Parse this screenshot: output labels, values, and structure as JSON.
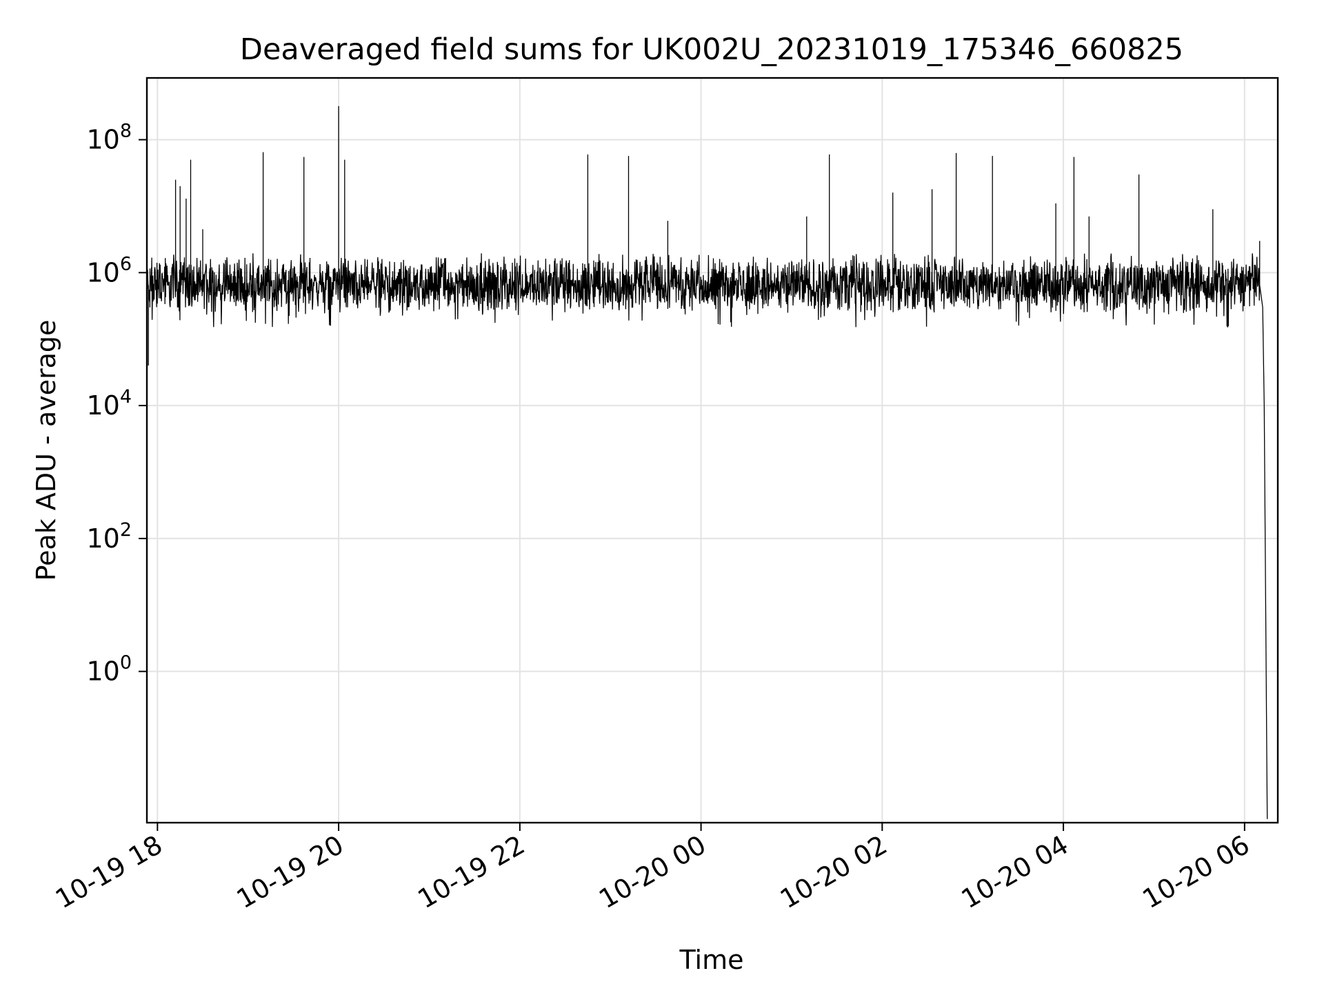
{
  "chart_data": {
    "type": "line",
    "title": "Deaveraged field sums for UK002U_20231019_175346_660825",
    "xlabel": "Time",
    "ylabel": "Peak ADU - average",
    "x_scale": "time",
    "y_scale": "log",
    "xlim": [
      "2023-10-19 17:53",
      "2023-10-20 06:22"
    ],
    "ylim": [
      0.0053,
      850000000
    ],
    "grid": true,
    "line_color": "#000000",
    "x_ticks": [
      {
        "value": "2023-10-19 18:00",
        "label": "10-19 18"
      },
      {
        "value": "2023-10-19 20:00",
        "label": "10-19 20"
      },
      {
        "value": "2023-10-19 22:00",
        "label": "10-19 22"
      },
      {
        "value": "2023-10-20 00:00",
        "label": "10-20 00"
      },
      {
        "value": "2023-10-20 02:00",
        "label": "10-20 02"
      },
      {
        "value": "2023-10-20 04:00",
        "label": "10-20 04"
      },
      {
        "value": "2023-10-20 06:00",
        "label": "10-20 06"
      }
    ],
    "y_ticks": [
      {
        "value": 1,
        "base": "10",
        "exp": "0"
      },
      {
        "value": 100,
        "base": "10",
        "exp": "2"
      },
      {
        "value": 10000,
        "base": "10",
        "exp": "4"
      },
      {
        "value": 1000000,
        "base": "10",
        "exp": "6"
      },
      {
        "value": 100000000,
        "base": "10",
        "exp": "8"
      }
    ],
    "series": [
      {
        "baseline_level": 650000,
        "noise_range": [
          150000,
          2000000
        ],
        "points": [
          {
            "x": "2023-10-19 17:53",
            "y": 180000
          },
          {
            "x": "2023-10-19 17:54",
            "y": 40000
          },
          {
            "x": "2023-10-19 17:55",
            "y": 300000
          },
          {
            "x": "2023-10-19 17:56",
            "y": 1200000
          },
          {
            "x": "2023-10-19 18:12",
            "y": 25000000
          },
          {
            "x": "2023-10-19 18:15",
            "y": 20000000
          },
          {
            "x": "2023-10-19 18:19",
            "y": 13000000
          },
          {
            "x": "2023-10-19 18:22",
            "y": 50000000
          },
          {
            "x": "2023-10-19 18:30",
            "y": 4500000
          },
          {
            "x": "2023-10-19 19:10",
            "y": 65000000
          },
          {
            "x": "2023-10-19 19:37",
            "y": 55000000
          },
          {
            "x": "2023-10-19 20:00",
            "y": 320000000
          },
          {
            "x": "2023-10-19 20:04",
            "y": 50000000
          },
          {
            "x": "2023-10-19 22:45",
            "y": 60000000
          },
          {
            "x": "2023-10-19 23:12",
            "y": 57000000
          },
          {
            "x": "2023-10-19 23:38",
            "y": 6000000
          },
          {
            "x": "2023-10-20 01:10",
            "y": 7000000
          },
          {
            "x": "2023-10-20 01:25",
            "y": 60000000
          },
          {
            "x": "2023-10-20 02:07",
            "y": 16000000
          },
          {
            "x": "2023-10-20 02:33",
            "y": 18000000
          },
          {
            "x": "2023-10-20 02:49",
            "y": 63000000
          },
          {
            "x": "2023-10-20 03:13",
            "y": 57000000
          },
          {
            "x": "2023-10-20 03:55",
            "y": 11000000
          },
          {
            "x": "2023-10-20 04:07",
            "y": 55000000
          },
          {
            "x": "2023-10-20 04:17",
            "y": 7000000
          },
          {
            "x": "2023-10-20 04:50",
            "y": 30000000
          },
          {
            "x": "2023-10-20 05:39",
            "y": 9000000
          },
          {
            "x": "2023-10-20 06:10",
            "y": 3000000
          },
          {
            "x": "2023-10-20 06:12",
            "y": 300000
          },
          {
            "x": "2023-10-20 06:13",
            "y": 10000
          },
          {
            "x": "2023-10-20 06:15",
            "y": 0.006
          }
        ]
      }
    ]
  }
}
